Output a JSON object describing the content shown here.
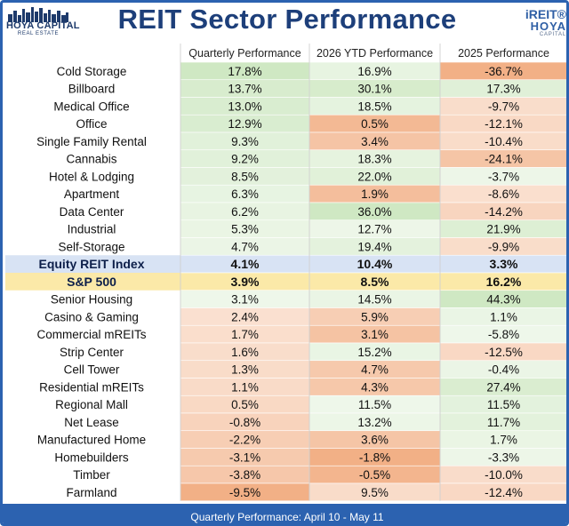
{
  "header": {
    "title": "REIT Sector Performance",
    "logo_left_name": "HOYA CAPITAL",
    "logo_left_sub": "REAL ESTATE",
    "logo_right_line1": "iREIT®",
    "logo_right_line2": "HOYA",
    "logo_right_line3": "CAPITAL"
  },
  "footer": {
    "note": "Quarterly Performance: April 10 - May 11"
  },
  "colors": {
    "brand_blue": "#2c62b0",
    "title_navy": "#1d3f7a",
    "positive_green": "#cfe8c3",
    "negative_orange": "#f2b086",
    "highlight_yellow": "#fbe9a8",
    "index_row": "#d8e3f4"
  },
  "chart_data": {
    "type": "table",
    "columns": [
      "Quarterly Performance",
      "2026 YTD Performance",
      "2025 Performance"
    ],
    "rows": [
      {
        "name": "Cold Storage",
        "q": "17.8%",
        "ytd": "16.9%",
        "y2025": "-36.7%"
      },
      {
        "name": "Billboard",
        "q": "13.7%",
        "ytd": "30.1%",
        "y2025": "17.3%"
      },
      {
        "name": "Medical Office",
        "q": "13.0%",
        "ytd": "18.5%",
        "y2025": "-9.7%"
      },
      {
        "name": "Office",
        "q": "12.9%",
        "ytd": "0.5%",
        "y2025": "-12.1%"
      },
      {
        "name": "Single Family Rental",
        "q": "9.3%",
        "ytd": "3.4%",
        "y2025": "-10.4%"
      },
      {
        "name": "Cannabis",
        "q": "9.2%",
        "ytd": "18.3%",
        "y2025": "-24.1%"
      },
      {
        "name": "Hotel & Lodging",
        "q": "8.5%",
        "ytd": "22.0%",
        "y2025": "-3.7%"
      },
      {
        "name": "Apartment",
        "q": "6.3%",
        "ytd": "1.9%",
        "y2025": "-8.6%"
      },
      {
        "name": "Data Center",
        "q": "6.2%",
        "ytd": "36.0%",
        "y2025": "-14.2%"
      },
      {
        "name": "Industrial",
        "q": "5.3%",
        "ytd": "12.7%",
        "y2025": "21.9%"
      },
      {
        "name": "Self-Storage",
        "q": "4.7%",
        "ytd": "19.4%",
        "y2025": "-9.9%"
      },
      {
        "name": "Equity REIT Index",
        "q": "4.1%",
        "ytd": "10.4%",
        "y2025": "3.3%",
        "style": "index"
      },
      {
        "name": "S&P 500",
        "q": "3.9%",
        "ytd": "8.5%",
        "y2025": "16.2%",
        "style": "benchmark"
      },
      {
        "name": "Senior Housing",
        "q": "3.1%",
        "ytd": "14.5%",
        "y2025": "44.3%"
      },
      {
        "name": "Casino & Gaming",
        "q": "2.4%",
        "ytd": "5.9%",
        "y2025": "1.1%"
      },
      {
        "name": "Commercial mREITs",
        "q": "1.7%",
        "ytd": "3.1%",
        "y2025": "-5.8%"
      },
      {
        "name": "Strip Center",
        "q": "1.6%",
        "ytd": "15.2%",
        "y2025": "-12.5%"
      },
      {
        "name": "Cell Tower",
        "q": "1.3%",
        "ytd": "4.7%",
        "y2025": "-0.4%"
      },
      {
        "name": "Residential mREITs",
        "q": "1.1%",
        "ytd": "4.3%",
        "y2025": "27.4%"
      },
      {
        "name": "Regional Mall",
        "q": "0.5%",
        "ytd": "11.5%",
        "y2025": "11.5%"
      },
      {
        "name": "Net Lease",
        "q": "-0.8%",
        "ytd": "13.2%",
        "y2025": "11.7%"
      },
      {
        "name": "Manufactured Home",
        "q": "-2.2%",
        "ytd": "3.6%",
        "y2025": "1.7%"
      },
      {
        "name": "Homebuilders",
        "q": "-3.1%",
        "ytd": "-1.8%",
        "y2025": "-3.3%"
      },
      {
        "name": "Timber",
        "q": "-3.8%",
        "ytd": "-0.5%",
        "y2025": "-10.0%"
      },
      {
        "name": "Farmland",
        "q": "-9.5%",
        "ytd": "9.5%",
        "y2025": "-12.4%"
      }
    ]
  }
}
